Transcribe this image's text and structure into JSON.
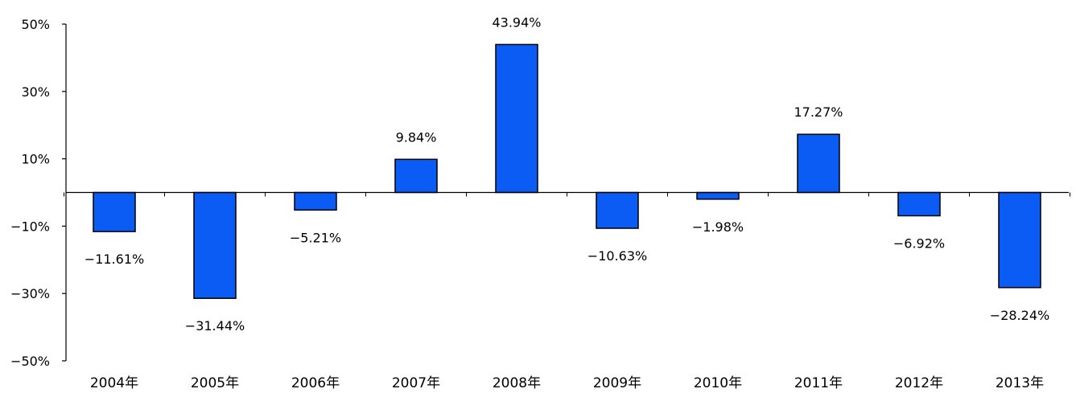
{
  "chart_data": {
    "type": "bar",
    "title": "",
    "xlabel": "",
    "ylabel": "",
    "categories": [
      "2004年",
      "2005年",
      "2006年",
      "2007年",
      "2008年",
      "2009年",
      "2010年",
      "2011年",
      "2012年",
      "2013年"
    ],
    "values": [
      -11.61,
      -31.44,
      -5.21,
      9.84,
      43.94,
      -10.63,
      -1.98,
      17.27,
      -6.92,
      -28.24
    ],
    "data_labels": [
      "−11.61%",
      "−31.44%",
      "−5.21%",
      "9.84%",
      "43.94%",
      "−10.63%",
      "−1.98%",
      "17.27%",
      "−6.92%",
      "−28.24%"
    ],
    "ylim": [
      -50,
      50
    ],
    "yticks": [
      50,
      30,
      10,
      -10,
      -30,
      -50
    ],
    "ytick_labels": [
      "50%",
      "30%",
      "10%",
      "−10%",
      "−30%",
      "−50%"
    ],
    "grid": false,
    "legend": "none",
    "colors": {
      "bar_fill": "#0b5cf5",
      "bar_stroke": "#000000",
      "axis": "#000000",
      "text": "#000000"
    }
  }
}
